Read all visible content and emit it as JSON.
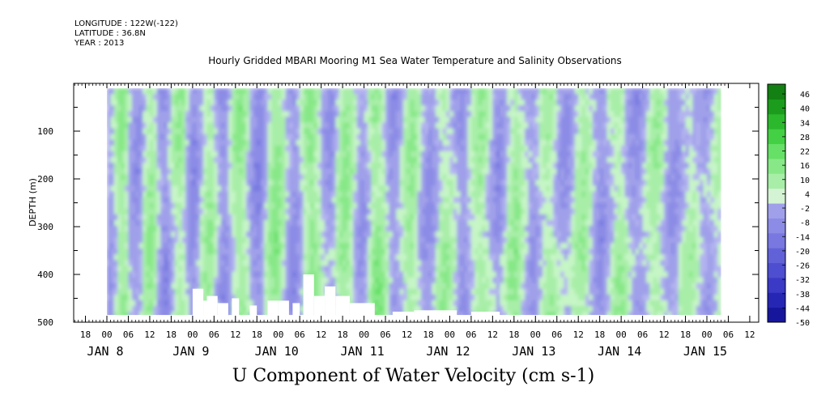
{
  "header": {
    "longitude": "LONGITUDE : 122W(-122)",
    "latitude": "LATITUDE : 36.8N",
    "year": "YEAR : 2013"
  },
  "chart_data": {
    "type": "heatmap",
    "title": "Hourly Gridded MBARI Mooring M1 Sea Water Temperature and Salinity Observations",
    "xlabel": "U Component of Water Velocity (cm s-1)",
    "ylabel": "DEPTH (m)",
    "y_axis": {
      "range": [
        0,
        500
      ],
      "inverted": true,
      "ticks": [
        100,
        200,
        300,
        400,
        500
      ],
      "minor_step": 50
    },
    "x_axis": {
      "range_hours": [
        -9,
        151
      ],
      "hour_ticks": [
        "18",
        "00",
        "06",
        "12",
        "18",
        "00",
        "06",
        "12",
        "18",
        "00",
        "06",
        "12",
        "18",
        "00",
        "06",
        "12",
        "18",
        "00",
        "06",
        "12",
        "18",
        "00",
        "06",
        "12",
        "18",
        "00",
        "06",
        "12",
        "18",
        "00",
        "06",
        "12"
      ],
      "hour_tick_values": [
        -6,
        0,
        6,
        12,
        18,
        24,
        30,
        36,
        42,
        48,
        54,
        60,
        66,
        72,
        78,
        84,
        90,
        96,
        102,
        108,
        114,
        120,
        126,
        132,
        138,
        144,
        150,
        156,
        162,
        168,
        174,
        180
      ],
      "day_labels": [
        "JAN  8",
        "JAN  9",
        "JAN 10",
        "JAN 11",
        "JAN 12",
        "JAN 13",
        "JAN 14",
        "JAN 15"
      ],
      "day_label_values": [
        0,
        24,
        48,
        72,
        96,
        120,
        144,
        168
      ]
    },
    "data_extent": {
      "hour_start": 0,
      "hour_end": 172,
      "depth_top": 10,
      "depth_bottom": 485
    },
    "colorbar": {
      "levels": [
        -50,
        -44,
        -38,
        -32,
        -26,
        -20,
        -14,
        -8,
        -2,
        4,
        10,
        16,
        22,
        28,
        34,
        40,
        46
      ],
      "labels": [
        "46",
        "40",
        "34",
        "28",
        "22",
        "16",
        "10",
        "4",
        "-2",
        "-8",
        "-14",
        "-20",
        "-26",
        "-32",
        "-38",
        "-44",
        "-50"
      ]
    },
    "colors": {
      "negative": [
        "#b3b3f0",
        "#a0a0ea",
        "#8c8ce6",
        "#7878e0",
        "#6262d8",
        "#4e4ed0",
        "#3a3ac6",
        "#2626b4",
        "#16169c",
        "#0a0a80",
        "#000060"
      ],
      "positive": [
        "#c6f5c6",
        "#a8eea8",
        "#88e888",
        "#66e066",
        "#44d044",
        "#2cb82c",
        "#1c9c1c",
        "#128012",
        "#0a640a",
        "#064806"
      ]
    },
    "field": {
      "description_values": "U velocity cm/s, positive=green, negative=blue/purple",
      "column_pattern": [
        -6,
        -4,
        2,
        8,
        10,
        6,
        -2,
        -6,
        -8,
        -4,
        3,
        7,
        9,
        4,
        -3,
        -8,
        -10,
        -5,
        2,
        6,
        8,
        5,
        -2,
        -7,
        -9,
        -5,
        1,
        5,
        8,
        6,
        0,
        -5,
        -9,
        -7,
        -2,
        4,
        8,
        10,
        7,
        2,
        -4,
        -8,
        -11,
        -7,
        -1,
        5,
        9,
        11,
        8,
        3,
        -3,
        -7,
        -9,
        -6,
        0,
        6,
        10,
        12,
        9,
        4,
        -2,
        -6,
        -8,
        -5,
        1,
        6,
        9,
        8,
        4,
        -1,
        -5,
        -7,
        -4,
        2,
        7,
        10,
        9,
        5,
        -1,
        -6,
        -8,
        -6,
        -2,
        3,
        7,
        8,
        5,
        0,
        -4,
        -7,
        -8,
        -5,
        0,
        4,
        6,
        5,
        2,
        -2,
        -6,
        -9,
        -7,
        -3,
        2,
        5,
        7,
        6,
        3,
        -1,
        -5,
        -8,
        -6,
        -2,
        3,
        6,
        8,
        5,
        1,
        -3,
        -6,
        -7,
        -4,
        0,
        4,
        6,
        5,
        2,
        -2,
        -5,
        -7,
        -5,
        -1,
        3,
        6,
        7,
        4,
        0,
        -4,
        -7,
        -9,
        -6,
        -2,
        2,
        5,
        6,
        4,
        0,
        -4,
        -7,
        -8,
        -6,
        -3,
        1,
        4,
        6,
        5,
        2,
        -2,
        -5,
        -7,
        -6,
        -3,
        1,
        3,
        4,
        2,
        -1,
        -4,
        -6,
        -5,
        -2,
        1,
        3
      ]
    },
    "gaps": [
      {
        "h0": 24,
        "h1": 27,
        "d0": 430,
        "d1": 485
      },
      {
        "h0": 27,
        "h1": 28,
        "d0": 455,
        "d1": 485
      },
      {
        "h0": 28,
        "h1": 31,
        "d0": 445,
        "d1": 485
      },
      {
        "h0": 31,
        "h1": 34,
        "d0": 460,
        "d1": 485
      },
      {
        "h0": 35,
        "h1": 37,
        "d0": 450,
        "d1": 485
      },
      {
        "h0": 40,
        "h1": 42,
        "d0": 465,
        "d1": 485
      },
      {
        "h0": 45,
        "h1": 48,
        "d0": 455,
        "d1": 485
      },
      {
        "h0": 48,
        "h1": 51,
        "d0": 455,
        "d1": 485
      },
      {
        "h0": 52,
        "h1": 54,
        "d0": 460,
        "d1": 485
      },
      {
        "h0": 55,
        "h1": 58,
        "d0": 400,
        "d1": 485
      },
      {
        "h0": 58,
        "h1": 61,
        "d0": 445,
        "d1": 485
      },
      {
        "h0": 61,
        "h1": 64,
        "d0": 425,
        "d1": 485
      },
      {
        "h0": 64,
        "h1": 68,
        "d0": 445,
        "d1": 485
      },
      {
        "h0": 68,
        "h1": 75,
        "d0": 460,
        "d1": 485
      },
      {
        "h0": 80,
        "h1": 86,
        "d0": 478,
        "d1": 485
      },
      {
        "h0": 86,
        "h1": 98,
        "d0": 475,
        "d1": 485
      },
      {
        "h0": 102,
        "h1": 110,
        "d0": 478,
        "d1": 485
      }
    ]
  }
}
